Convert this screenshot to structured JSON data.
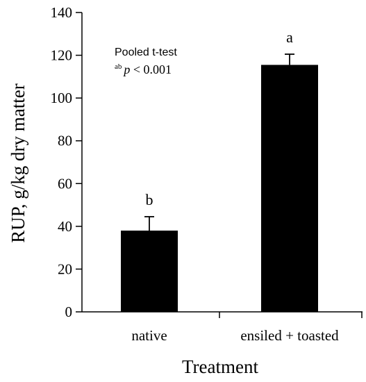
{
  "chart_data": {
    "type": "bar",
    "categories": [
      "native",
      "ensiled + toasted"
    ],
    "values": [
      38,
      115.5
    ],
    "errors": [
      6.5,
      5
    ],
    "letters": [
      "b",
      "a"
    ],
    "xlabel": "Treatment",
    "ylabel": "RUP, g/kg dry matter",
    "ylim": [
      0,
      140
    ],
    "yticks": [
      0,
      20,
      40,
      60,
      80,
      100,
      120,
      140
    ],
    "ytick_labels": [
      "0",
      "20",
      "40",
      "60",
      "80",
      "100",
      "120",
      "140"
    ],
    "grid": false,
    "annotation": {
      "line1": "Pooled t-test",
      "line2_superscript": "ab",
      "line2_p": "p",
      "line2_rest": " < 0.001"
    },
    "bar_color": "#000000"
  }
}
